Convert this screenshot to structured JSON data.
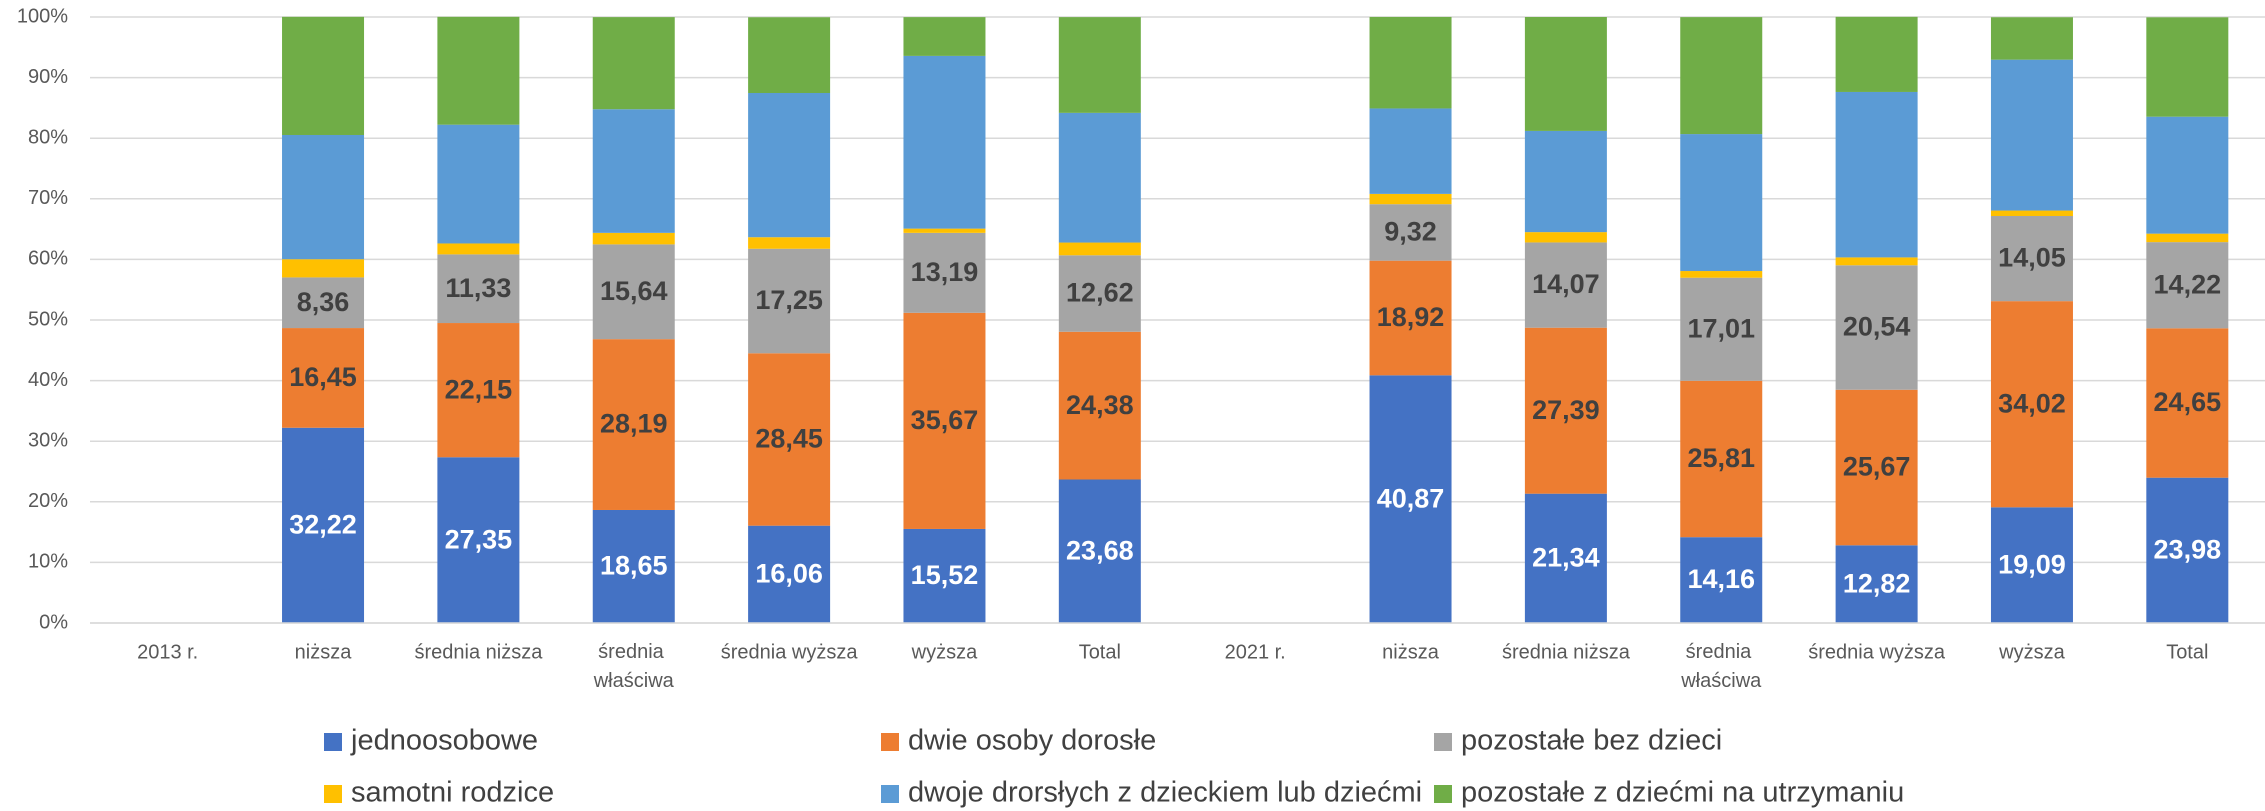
{
  "chart_data": {
    "type": "stacked_bar",
    "categories": [
      "2013 r.",
      "niższa",
      "średnia niższa",
      "średnia właściwa",
      "średnia wyższa",
      "wyższa",
      "Total",
      "2021 r.",
      "niższa",
      "średnia niższa",
      "średnia właściwa",
      "średnia wyższa",
      "wyższa",
      "Total"
    ],
    "series": [
      {
        "name": "jednoosobowe",
        "color": "#4472c4",
        "label_color": "#ffffff",
        "values": [
          null,
          32.22,
          27.35,
          18.65,
          16.06,
          15.52,
          23.68,
          null,
          40.87,
          21.34,
          14.16,
          12.82,
          19.09,
          23.98
        ],
        "value_labels": [
          null,
          "32,22",
          "27,35",
          "18,65",
          "16,06",
          "15,52",
          "23,68",
          null,
          "40,87",
          "21,34",
          "14,16",
          "12,82",
          "19,09",
          "23,98"
        ]
      },
      {
        "name": "dwie osoby dorosłe",
        "color": "#ed7d31",
        "label_color": "#404040",
        "values": [
          null,
          16.45,
          22.15,
          28.19,
          28.45,
          35.67,
          24.38,
          null,
          18.92,
          27.39,
          25.81,
          25.67,
          34.02,
          24.65
        ],
        "value_labels": [
          null,
          "16,45",
          "22,15",
          "28,19",
          "28,45",
          "35,67",
          "24,38",
          null,
          "18,92",
          "27,39",
          "25,81",
          "25,67",
          "34,02",
          "24,65"
        ]
      },
      {
        "name": "pozostałe bez dzieci",
        "color": "#a5a5a5",
        "label_color": "#404040",
        "values": [
          null,
          8.36,
          11.33,
          15.64,
          17.25,
          13.19,
          12.62,
          null,
          9.32,
          14.07,
          17.01,
          20.54,
          14.05,
          14.22
        ],
        "value_labels": [
          null,
          "8,36",
          "11,33",
          "15,64",
          "17,25",
          "13,19",
          "12,62",
          null,
          "9,32",
          "14,07",
          "17,01",
          "20,54",
          "14,05",
          "14,22"
        ]
      },
      {
        "name": "samotni rodzice",
        "color": "#ffc000",
        "values": [
          null,
          3.0,
          1.8,
          1.9,
          1.9,
          0.7,
          2.1,
          null,
          1.7,
          1.7,
          1.1,
          1.3,
          0.9,
          1.4
        ]
      },
      {
        "name": "dwoje drorsłych z dzieckiem lub dziećmi",
        "color": "#5b9bd5",
        "values": [
          null,
          20.5,
          19.6,
          20.4,
          23.8,
          28.5,
          21.4,
          null,
          14.1,
          16.7,
          22.6,
          27.3,
          24.9,
          19.3
        ]
      },
      {
        "name": "pozostałe z dziećmi na utrzymaniu",
        "color": "#70ad47",
        "values": [
          null,
          19.5,
          17.8,
          15.2,
          12.5,
          6.4,
          15.8,
          null,
          15.1,
          18.8,
          19.3,
          12.4,
          7.0,
          16.4
        ]
      }
    ],
    "ylim": [
      0,
      100
    ],
    "yticks": [
      {
        "value": 0,
        "label": "0%"
      },
      {
        "value": 10,
        "label": "10%"
      },
      {
        "value": 20,
        "label": "20%"
      },
      {
        "value": 30,
        "label": "30%"
      },
      {
        "value": 40,
        "label": "40%"
      },
      {
        "value": 50,
        "label": "50%"
      },
      {
        "value": 60,
        "label": "60%"
      },
      {
        "value": 70,
        "label": "70%"
      },
      {
        "value": 80,
        "label": "80%"
      },
      {
        "value": 90,
        "label": "90%"
      },
      {
        "value": 100,
        "label": "100%"
      }
    ],
    "grid": true
  }
}
